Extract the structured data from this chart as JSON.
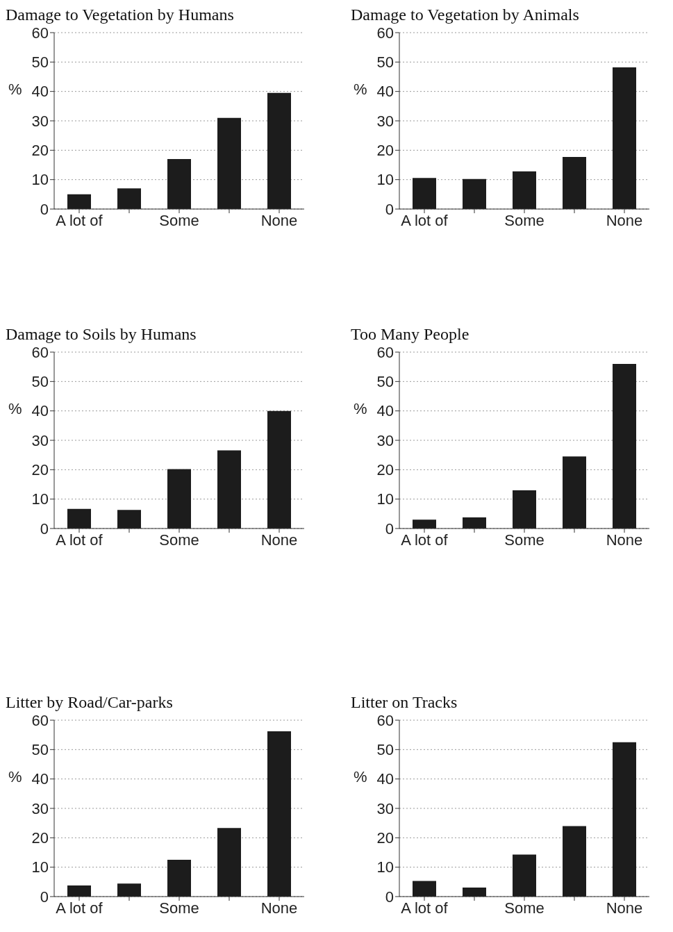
{
  "chart_data": [
    {
      "type": "bar",
      "title": "Damage to Vegetation by Humans",
      "ylabel": "%",
      "categories": [
        "A lot of",
        null,
        "Some",
        null,
        "None"
      ],
      "values": [
        5,
        7,
        17,
        31,
        39.5
      ],
      "color": "#1c1c1c",
      "ylim": [
        0,
        60
      ],
      "yticks": [
        0,
        10,
        20,
        30,
        40,
        50,
        60
      ],
      "grid": "y"
    },
    {
      "type": "bar",
      "title": "Damage to Vegetation by Animals",
      "ylabel": "%",
      "categories": [
        "A lot of",
        null,
        "Some",
        null,
        "None"
      ],
      "values": [
        10.6,
        10.2,
        12.8,
        17.7,
        48.2
      ],
      "color": "#1c1c1c",
      "ylim": [
        0,
        60
      ],
      "yticks": [
        0,
        10,
        20,
        30,
        40,
        50,
        60
      ],
      "grid": "y"
    },
    {
      "type": "bar",
      "title": "Damage to Soils by Humans",
      "ylabel": "%",
      "categories": [
        "A lot of",
        null,
        "Some",
        null,
        "None"
      ],
      "values": [
        6.7,
        6.3,
        20.2,
        26.6,
        40
      ],
      "color": "#1c1c1c",
      "ylim": [
        0,
        60
      ],
      "yticks": [
        0,
        10,
        20,
        30,
        40,
        50,
        60
      ],
      "grid": "y"
    },
    {
      "type": "bar",
      "title": "Too Many People",
      "ylabel": "%",
      "categories": [
        "A lot of",
        null,
        "Some",
        null,
        "None"
      ],
      "values": [
        3,
        3.8,
        13,
        24.5,
        56
      ],
      "color": "#1c1c1c",
      "ylim": [
        0,
        60
      ],
      "yticks": [
        0,
        10,
        20,
        30,
        40,
        50,
        60
      ],
      "grid": "y"
    },
    {
      "type": "bar",
      "title": "Litter by Road/Car-parks",
      "ylabel": "%",
      "categories": [
        "A lot of",
        null,
        "Some",
        null,
        "None"
      ],
      "values": [
        3.8,
        4.4,
        12.5,
        23.3,
        56.2
      ],
      "color": "#1c1c1c",
      "ylim": [
        0,
        60
      ],
      "yticks": [
        0,
        10,
        20,
        30,
        40,
        50,
        60
      ],
      "grid": "y"
    },
    {
      "type": "bar",
      "title": "Litter on Tracks",
      "ylabel": "%",
      "categories": [
        "A lot of",
        null,
        "Some",
        null,
        "None"
      ],
      "values": [
        5.3,
        3.1,
        14.3,
        24,
        52.5
      ],
      "color": "#1c1c1c",
      "ylim": [
        0,
        60
      ],
      "yticks": [
        0,
        10,
        20,
        30,
        40,
        50,
        60
      ],
      "grid": "y"
    }
  ]
}
